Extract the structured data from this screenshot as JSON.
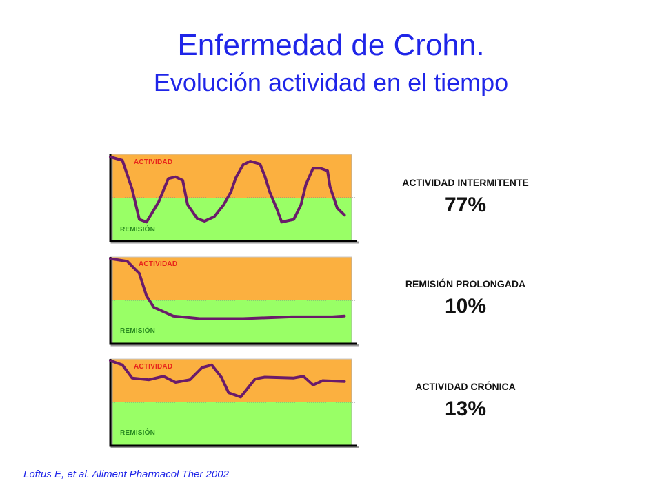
{
  "title": "Enfermedad de Crohn.",
  "subtitle": "Evolución actividad en el tiempo",
  "colors": {
    "title": "#1f25e8",
    "activity_zone": "#fbb040",
    "remission_zone": "#99ff66",
    "curve": "#6a1b6a",
    "activity_label": "#e8251b",
    "remission_label": "#2a8a22"
  },
  "panels": [
    {
      "activity_label": "ACTIVIDAD",
      "remission_label": "REMISIÓN",
      "pattern_label": "ACTIVIDAD INTERMITENTE",
      "percentage": "77%",
      "curve": [
        [
          0,
          0.97
        ],
        [
          0.05,
          0.93
        ],
        [
          0.09,
          0.6
        ],
        [
          0.12,
          0.25
        ],
        [
          0.15,
          0.22
        ],
        [
          0.2,
          0.45
        ],
        [
          0.24,
          0.72
        ],
        [
          0.27,
          0.74
        ],
        [
          0.3,
          0.7
        ],
        [
          0.32,
          0.42
        ],
        [
          0.36,
          0.26
        ],
        [
          0.39,
          0.23
        ],
        [
          0.43,
          0.28
        ],
        [
          0.47,
          0.42
        ],
        [
          0.5,
          0.57
        ],
        [
          0.52,
          0.73
        ],
        [
          0.55,
          0.88
        ],
        [
          0.58,
          0.92
        ],
        [
          0.62,
          0.89
        ],
        [
          0.64,
          0.75
        ],
        [
          0.66,
          0.57
        ],
        [
          0.69,
          0.37
        ],
        [
          0.71,
          0.22
        ],
        [
          0.76,
          0.25
        ],
        [
          0.79,
          0.42
        ],
        [
          0.81,
          0.65
        ],
        [
          0.84,
          0.84
        ],
        [
          0.87,
          0.84
        ],
        [
          0.9,
          0.81
        ],
        [
          0.91,
          0.63
        ],
        [
          0.94,
          0.38
        ],
        [
          0.97,
          0.3
        ]
      ]
    },
    {
      "activity_label": "ACTIVIDAD",
      "remission_label": "REMISIÓN",
      "pattern_label": "REMISIÓN PROLONGADA",
      "percentage": "10%",
      "curve": [
        [
          0,
          0.98
        ],
        [
          0.07,
          0.95
        ],
        [
          0.12,
          0.81
        ],
        [
          0.15,
          0.55
        ],
        [
          0.18,
          0.42
        ],
        [
          0.26,
          0.32
        ],
        [
          0.37,
          0.29
        ],
        [
          0.55,
          0.29
        ],
        [
          0.75,
          0.31
        ],
        [
          0.92,
          0.31
        ],
        [
          0.97,
          0.32
        ]
      ]
    },
    {
      "activity_label": "ACTIVIDAD",
      "remission_label": "REMISIÓN",
      "pattern_label": "ACTIVIDAD CRÓNICA",
      "percentage": "13%",
      "curve": [
        [
          0,
          0.98
        ],
        [
          0.05,
          0.93
        ],
        [
          0.09,
          0.78
        ],
        [
          0.16,
          0.76
        ],
        [
          0.22,
          0.8
        ],
        [
          0.27,
          0.73
        ],
        [
          0.33,
          0.76
        ],
        [
          0.38,
          0.9
        ],
        [
          0.42,
          0.93
        ],
        [
          0.46,
          0.79
        ],
        [
          0.49,
          0.61
        ],
        [
          0.54,
          0.56
        ],
        [
          0.6,
          0.77
        ],
        [
          0.64,
          0.79
        ],
        [
          0.76,
          0.78
        ],
        [
          0.8,
          0.8
        ],
        [
          0.84,
          0.7
        ],
        [
          0.88,
          0.75
        ],
        [
          0.97,
          0.74
        ]
      ]
    }
  ],
  "citation": "Loftus E, et al.  Aliment Pharmacol Ther  2002"
}
